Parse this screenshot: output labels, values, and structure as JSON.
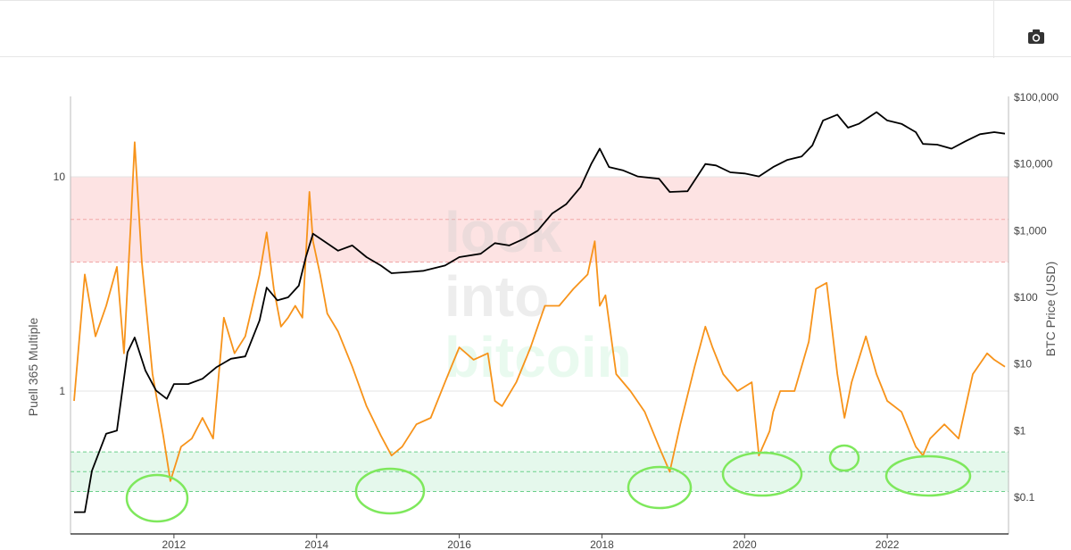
{
  "toolbar": {
    "camera_icon": "camera-icon"
  },
  "watermark": {
    "line1": "look",
    "line2": "into",
    "line3": "bitcoin"
  },
  "chart_data": {
    "type": "line",
    "title": "",
    "xlabel": "",
    "ylabel_left": "Puell 365 Multiple",
    "ylabel_right": "BTC Price (USD)",
    "x_range": [
      2010.55,
      2023.7
    ],
    "left_axis": {
      "scale": "log",
      "ticks": [
        "1",
        "10"
      ],
      "tick_values": [
        1,
        10
      ]
    },
    "right_axis": {
      "scale": "log",
      "ticks": [
        "$0.1",
        "$1",
        "$10",
        "$100",
        "$1,000",
        "$10,000",
        "$100,000"
      ],
      "tick_values": [
        0.1,
        1,
        10,
        100,
        1000,
        10000,
        100000
      ]
    },
    "x_ticks": [
      "2012",
      "2014",
      "2016",
      "2018",
      "2020",
      "2022"
    ],
    "x_tick_values": [
      2012,
      2014,
      2016,
      2018,
      2020,
      2022
    ],
    "bands": [
      {
        "name": "top zone",
        "from": 4,
        "to": 10,
        "color": "#fde3e3"
      },
      {
        "name": "bottom zone",
        "from": 0.34,
        "to": 0.52,
        "color": "#e5f8ec"
      }
    ],
    "series": [
      {
        "axis": "left",
        "color": "#f7931a",
        "x": [
          2010.6,
          2010.75,
          2010.9,
          2011.05,
          2011.2,
          2011.3,
          2011.4,
          2011.45,
          2011.55,
          2011.7,
          2011.85,
          2011.95,
          2012.1,
          2012.25,
          2012.4,
          2012.55,
          2012.7,
          2012.85,
          2013.0,
          2013.1,
          2013.2,
          2013.3,
          2013.4,
          2013.5,
          2013.6,
          2013.7,
          2013.8,
          2013.9,
          2013.95,
          2014.05,
          2014.15,
          2014.3,
          2014.5,
          2014.7,
          2014.9,
          2015.05,
          2015.2,
          2015.4,
          2015.6,
          2015.8,
          2016.0,
          2016.2,
          2016.4,
          2016.5,
          2016.6,
          2016.8,
          2017.0,
          2017.2,
          2017.4,
          2017.6,
          2017.8,
          2017.9,
          2017.97,
          2018.05,
          2018.2,
          2018.4,
          2018.6,
          2018.8,
          2018.95,
          2019.1,
          2019.3,
          2019.45,
          2019.55,
          2019.7,
          2019.9,
          2020.1,
          2020.2,
          2020.35,
          2020.4,
          2020.5,
          2020.7,
          2020.9,
          2021.0,
          2021.15,
          2021.3,
          2021.4,
          2021.5,
          2021.7,
          2021.85,
          2022.0,
          2022.2,
          2022.4,
          2022.5,
          2022.6,
          2022.8,
          2023.0,
          2023.2,
          2023.4,
          2023.5,
          2023.65
        ],
        "y": [
          0.9,
          3.5,
          1.8,
          2.5,
          3.8,
          1.5,
          6.5,
          14.5,
          4.0,
          1.2,
          0.62,
          0.38,
          0.55,
          0.6,
          0.75,
          0.6,
          2.2,
          1.5,
          1.8,
          2.5,
          3.5,
          5.5,
          3.0,
          2.0,
          2.2,
          2.5,
          2.2,
          8.5,
          5.0,
          3.5,
          2.3,
          1.9,
          1.3,
          0.85,
          0.62,
          0.5,
          0.55,
          0.7,
          0.75,
          1.1,
          1.6,
          1.4,
          1.5,
          0.9,
          0.85,
          1.1,
          1.6,
          2.5,
          2.5,
          3.0,
          3.5,
          5.0,
          2.5,
          2.8,
          1.2,
          1.0,
          0.8,
          0.55,
          0.42,
          0.7,
          1.3,
          2.0,
          1.6,
          1.2,
          1.0,
          1.1,
          0.5,
          0.65,
          0.8,
          1.0,
          1.0,
          1.7,
          3.0,
          3.2,
          1.2,
          0.75,
          1.1,
          1.8,
          1.2,
          0.9,
          0.8,
          0.55,
          0.5,
          0.6,
          0.7,
          0.6,
          1.2,
          1.5,
          1.4,
          1.3
        ]
      },
      {
        "axis": "right",
        "color": "#000000",
        "x": [
          2010.6,
          2010.75,
          2010.85,
          2011.05,
          2011.2,
          2011.35,
          2011.45,
          2011.6,
          2011.75,
          2011.9,
          2012.0,
          2012.2,
          2012.4,
          2012.6,
          2012.8,
          2013.0,
          2013.2,
          2013.3,
          2013.45,
          2013.6,
          2013.75,
          2013.85,
          2013.95,
          2014.1,
          2014.3,
          2014.5,
          2014.7,
          2014.9,
          2015.05,
          2015.3,
          2015.5,
          2015.8,
          2016.0,
          2016.3,
          2016.5,
          2016.7,
          2016.9,
          2017.1,
          2017.3,
          2017.5,
          2017.7,
          2017.85,
          2017.97,
          2018.1,
          2018.3,
          2018.5,
          2018.8,
          2018.95,
          2019.2,
          2019.45,
          2019.6,
          2019.8,
          2020.0,
          2020.2,
          2020.4,
          2020.6,
          2020.8,
          2020.95,
          2021.1,
          2021.3,
          2021.45,
          2021.6,
          2021.85,
          2022.0,
          2022.2,
          2022.4,
          2022.5,
          2022.7,
          2022.9,
          2023.1,
          2023.3,
          2023.5,
          2023.65
        ],
        "y": [
          0.06,
          0.06,
          0.25,
          0.9,
          1.0,
          15,
          25,
          8,
          4,
          3,
          5,
          5,
          6,
          9,
          12,
          13,
          45,
          140,
          90,
          100,
          150,
          400,
          900,
          700,
          500,
          600,
          400,
          300,
          230,
          240,
          250,
          300,
          400,
          450,
          650,
          600,
          750,
          1000,
          1800,
          2500,
          4500,
          10000,
          17000,
          9000,
          8000,
          6500,
          6000,
          3800,
          3900,
          10000,
          9500,
          7500,
          7200,
          6500,
          9000,
          11500,
          13000,
          19000,
          45000,
          55000,
          35000,
          40000,
          60000,
          45000,
          40000,
          30000,
          20000,
          19500,
          17000,
          22000,
          28000,
          30000,
          28500
        ]
      }
    ]
  }
}
